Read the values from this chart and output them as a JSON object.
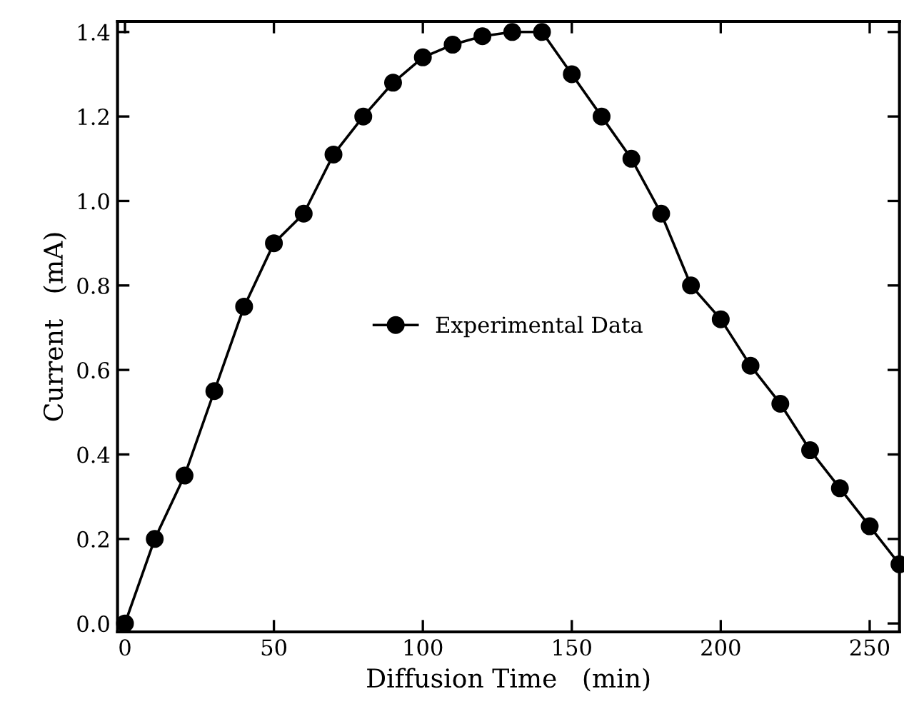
{
  "chart_data": {
    "type": "line",
    "xlabel": "Diffusion Time   (min)",
    "ylabel": "Current   (mA)",
    "x": [
      0,
      10,
      20,
      30,
      40,
      50,
      60,
      70,
      80,
      90,
      100,
      110,
      120,
      130,
      140,
      150,
      160,
      170,
      180,
      190,
      200,
      210,
      220,
      230,
      240,
      250,
      260
    ],
    "series": [
      {
        "name": "Experimental Data",
        "color": "#000000",
        "values": [
          0.0,
          0.2,
          0.35,
          0.55,
          0.75,
          0.9,
          0.97,
          1.11,
          1.2,
          1.28,
          1.34,
          1.37,
          1.39,
          1.4,
          1.4,
          1.3,
          1.2,
          1.1,
          0.97,
          0.8,
          0.72,
          0.61,
          0.52,
          0.41,
          0.32,
          0.23,
          0.14
        ]
      }
    ],
    "xlim": [
      -2.5,
      260
    ],
    "ylim": [
      -0.02,
      1.425
    ],
    "xticks": [
      0,
      50,
      100,
      150,
      200,
      250
    ],
    "yticks": [
      {
        "value": 0,
        "label": "0.0"
      },
      {
        "value": 0.2,
        "label": "0.2"
      },
      {
        "value": 0.4,
        "label": "0.4"
      },
      {
        "value": 0.6,
        "label": "0.6"
      },
      {
        "value": 0.8,
        "label": "0.8"
      },
      {
        "value": 1.0,
        "label": "1.0"
      },
      {
        "value": 1.2,
        "label": "1.2"
      },
      {
        "value": 1.4,
        "label": "1.4"
      }
    ],
    "marker": "circle",
    "line_style": "solid",
    "legend": "center",
    "grid": false
  }
}
